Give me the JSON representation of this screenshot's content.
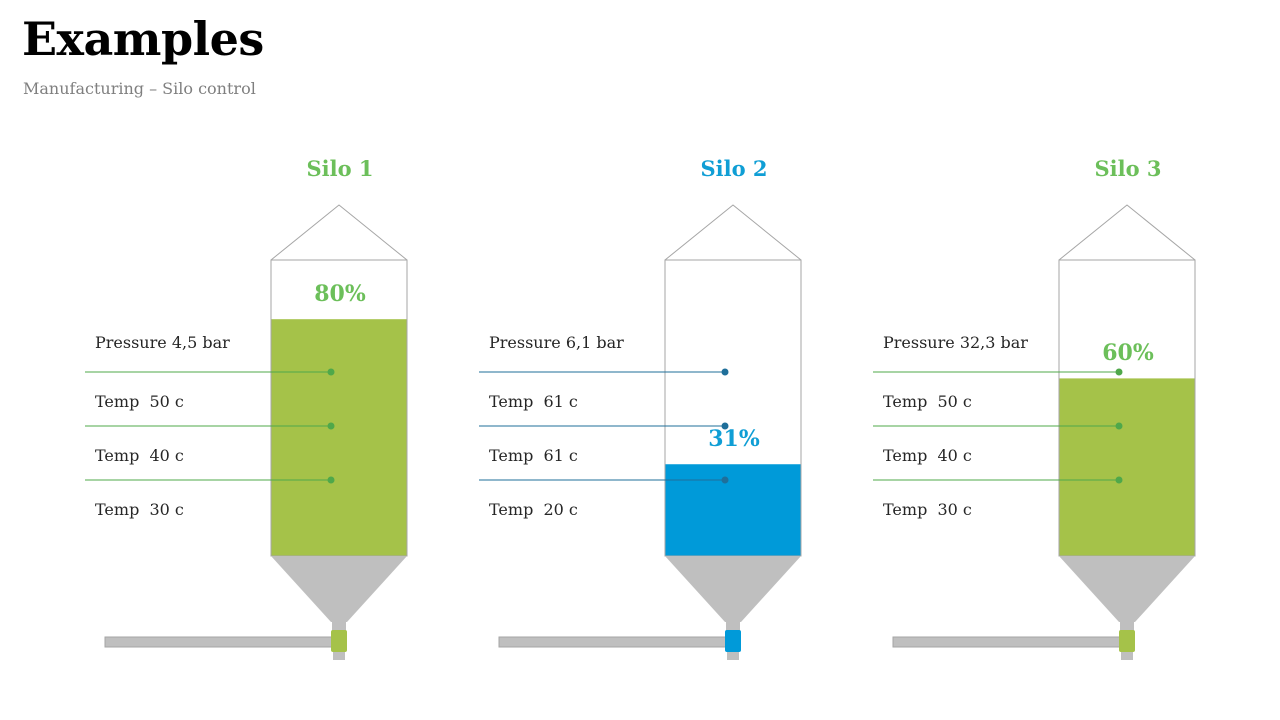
{
  "page": {
    "title": "Examples",
    "subtitle": "Manufacturing – Silo control"
  },
  "colors": {
    "green": "#a5c249",
    "green_text": "#6cbf5a",
    "blue": "#009ad9",
    "blue_text": "#0f9ed5",
    "gray": "#bfbfbf",
    "green_line": "#4fa84a",
    "blue_line": "#1f6f9a"
  },
  "silos": [
    {
      "name": "Silo 1",
      "level_percent": 80,
      "level_label": "80%",
      "theme": "green",
      "metrics": [
        "Pressure 4,5 bar",
        "Temp  50 c",
        "Temp  40 c",
        "Temp  30 c"
      ]
    },
    {
      "name": "Silo 2",
      "level_percent": 31,
      "level_label": "31%",
      "theme": "blue",
      "metrics": [
        "Pressure 6,1 bar",
        "Temp  61 c",
        "Temp  61 c",
        "Temp  20 c"
      ]
    },
    {
      "name": "Silo 3",
      "level_percent": 60,
      "level_label": "60%",
      "theme": "green",
      "metrics": [
        "Pressure 32,3 bar",
        "Temp  50 c",
        "Temp  40 c",
        "Temp  30 c"
      ]
    }
  ]
}
